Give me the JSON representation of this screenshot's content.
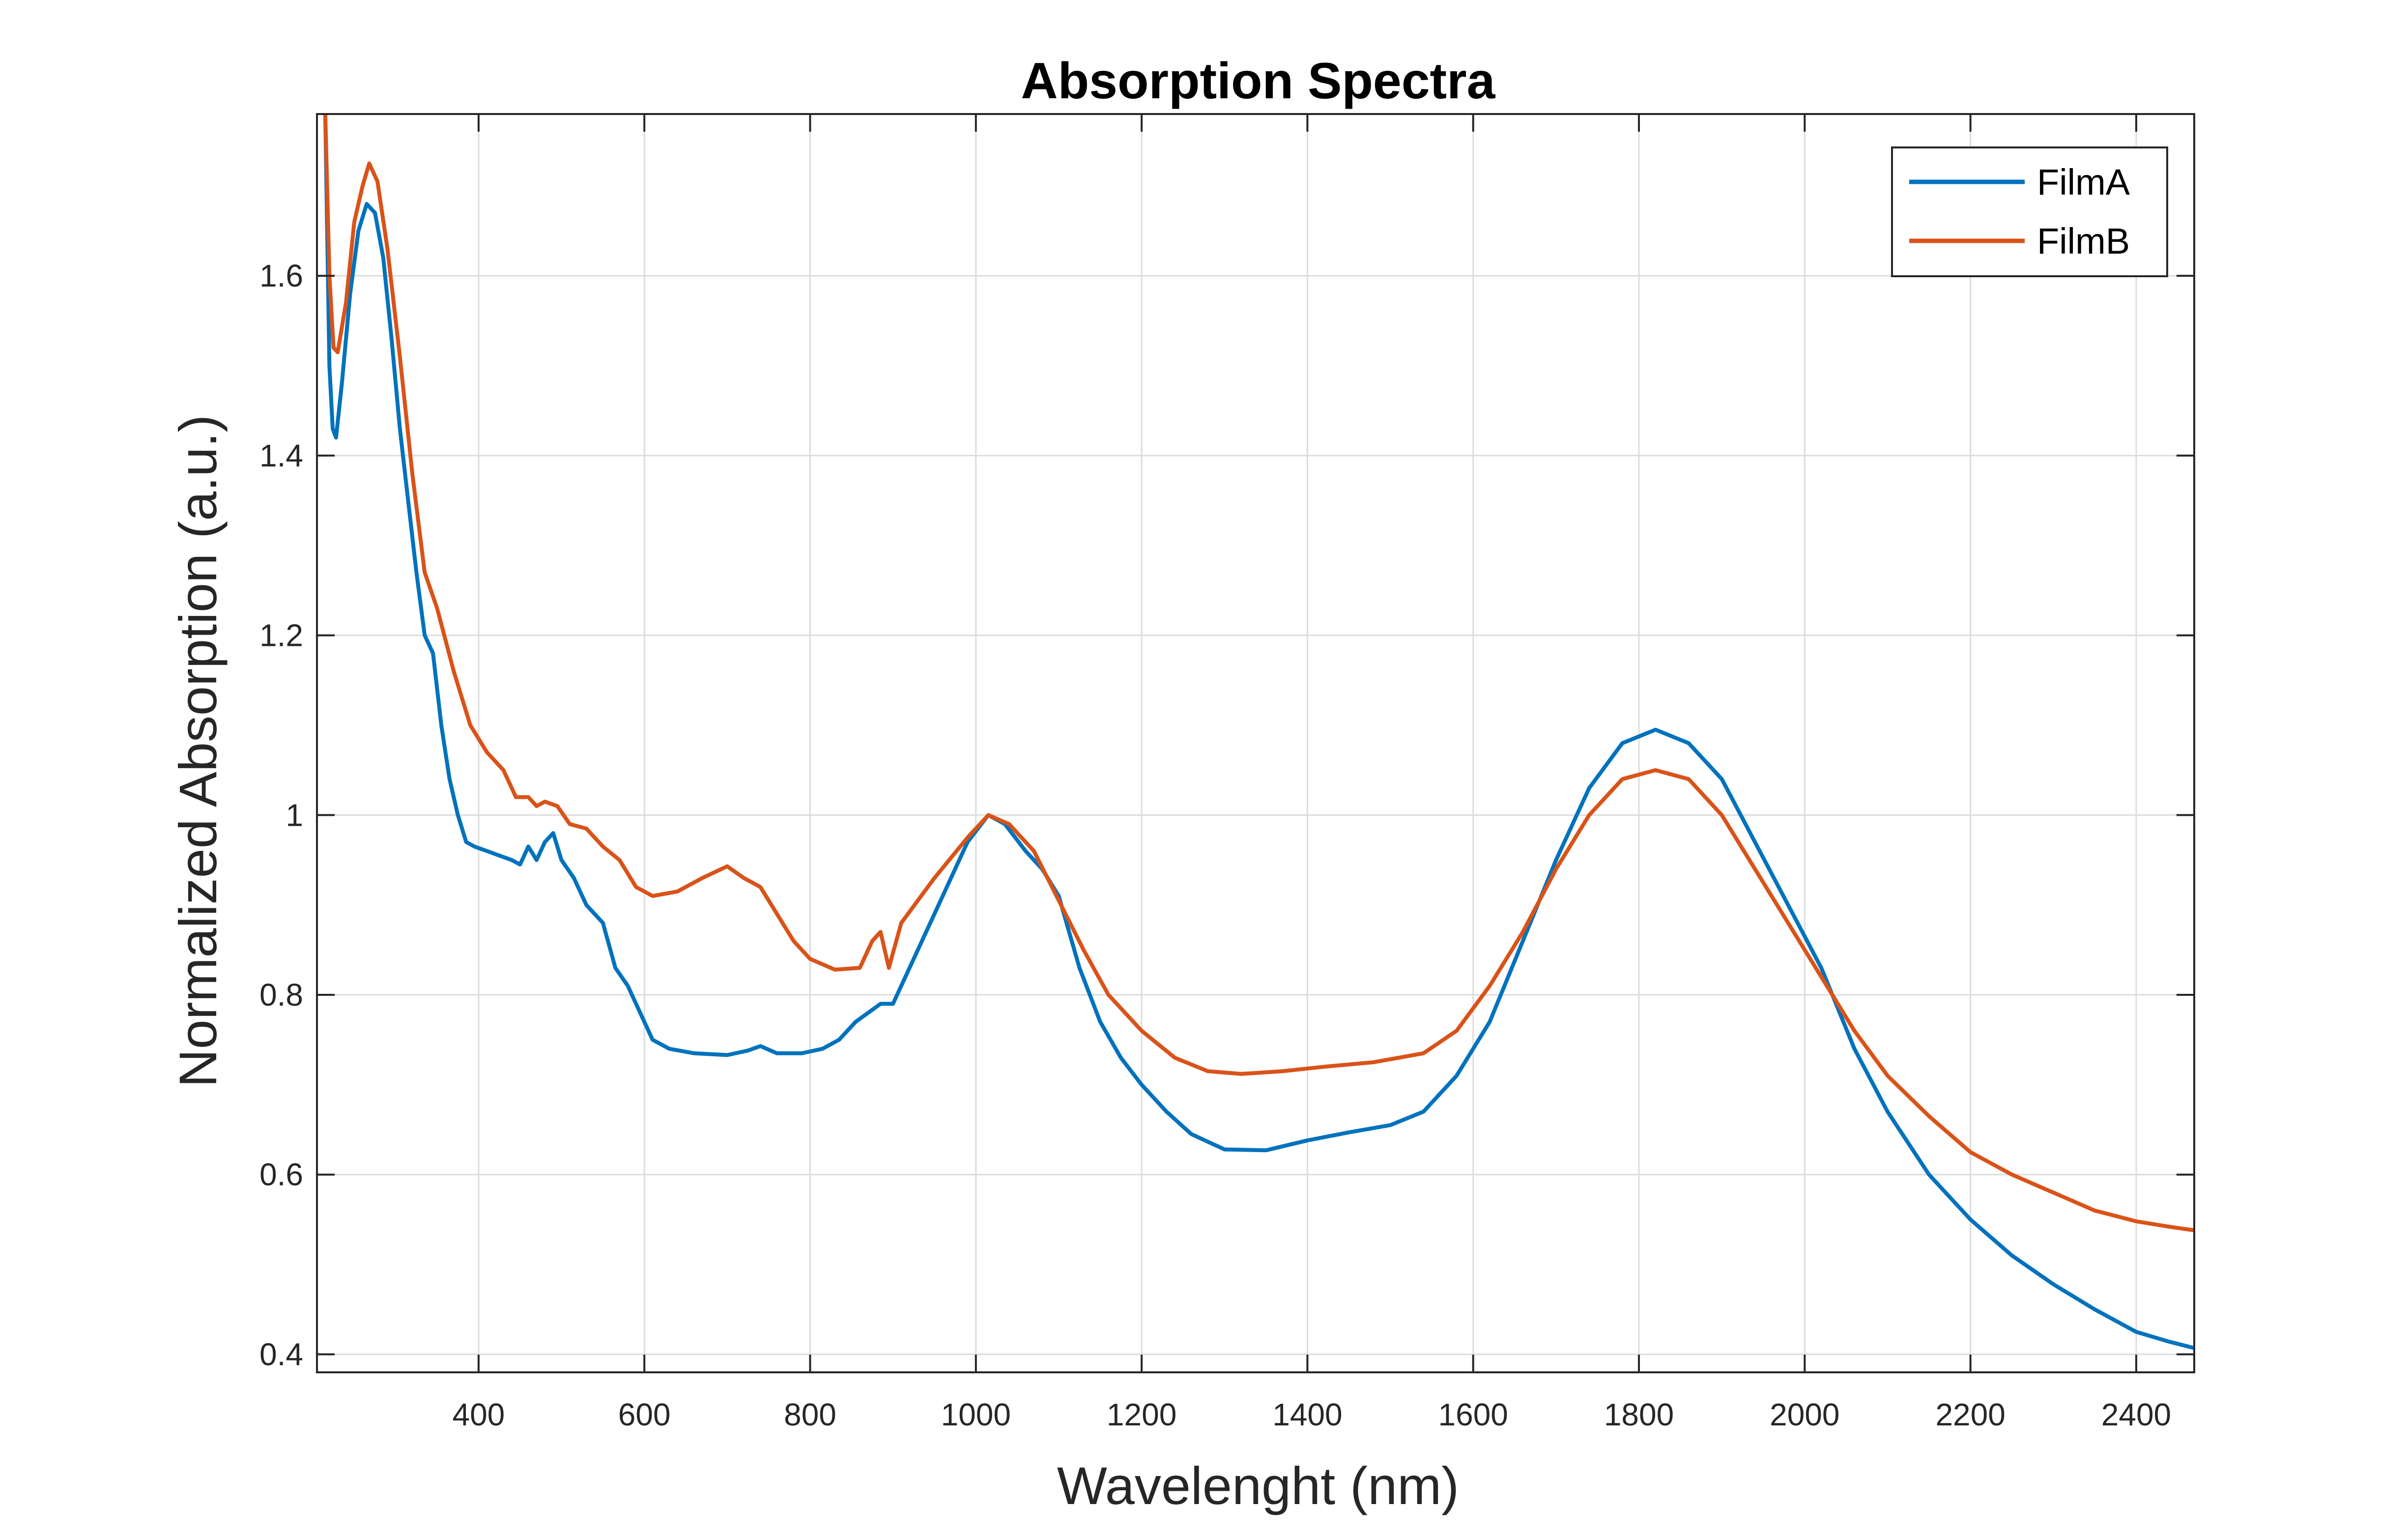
{
  "chart_data": {
    "type": "line",
    "title": "Absorption Spectra",
    "xlabel": "Wavelenght (nm)",
    "ylabel": "Normalized Absorption (a.u.)",
    "xlim": [
      205,
      2470
    ],
    "ylim": [
      0.38,
      1.78
    ],
    "xticks": [
      400,
      600,
      800,
      1000,
      1200,
      1400,
      1600,
      1800,
      2000,
      2200,
      2400
    ],
    "yticks": [
      0.4,
      0.6,
      0.8,
      1.0,
      1.2,
      1.4,
      1.6
    ],
    "ytick_labels": [
      "0.4",
      "0.6",
      "0.8",
      "1",
      "1.2",
      "1.4",
      "1.6"
    ],
    "grid": true,
    "legend_position": "top-right",
    "series": [
      {
        "name": "FilmA",
        "color": "#0072BD",
        "points": [
          [
            215,
            1.78
          ],
          [
            220,
            1.5
          ],
          [
            224,
            1.43
          ],
          [
            228,
            1.42
          ],
          [
            235,
            1.48
          ],
          [
            245,
            1.58
          ],
          [
            255,
            1.65
          ],
          [
            265,
            1.68
          ],
          [
            275,
            1.67
          ],
          [
            285,
            1.62
          ],
          [
            295,
            1.53
          ],
          [
            305,
            1.43
          ],
          [
            315,
            1.35
          ],
          [
            325,
            1.27
          ],
          [
            335,
            1.2
          ],
          [
            345,
            1.18
          ],
          [
            355,
            1.1
          ],
          [
            365,
            1.04
          ],
          [
            375,
            1.0
          ],
          [
            385,
            0.97
          ],
          [
            395,
            0.965
          ],
          [
            410,
            0.96
          ],
          [
            425,
            0.955
          ],
          [
            440,
            0.95
          ],
          [
            450,
            0.945
          ],
          [
            460,
            0.965
          ],
          [
            470,
            0.95
          ],
          [
            480,
            0.97
          ],
          [
            490,
            0.98
          ],
          [
            500,
            0.95
          ],
          [
            515,
            0.93
          ],
          [
            530,
            0.9
          ],
          [
            550,
            0.88
          ],
          [
            565,
            0.83
          ],
          [
            580,
            0.81
          ],
          [
            595,
            0.78
          ],
          [
            610,
            0.75
          ],
          [
            630,
            0.74
          ],
          [
            660,
            0.735
          ],
          [
            700,
            0.733
          ],
          [
            725,
            0.738
          ],
          [
            740,
            0.743
          ],
          [
            760,
            0.735
          ],
          [
            790,
            0.735
          ],
          [
            815,
            0.74
          ],
          [
            835,
            0.75
          ],
          [
            855,
            0.77
          ],
          [
            870,
            0.78
          ],
          [
            885,
            0.79
          ],
          [
            900,
            0.79
          ],
          [
            930,
            0.85
          ],
          [
            960,
            0.91
          ],
          [
            990,
            0.97
          ],
          [
            1015,
            1.0
          ],
          [
            1035,
            0.99
          ],
          [
            1060,
            0.96
          ],
          [
            1080,
            0.94
          ],
          [
            1100,
            0.91
          ],
          [
            1125,
            0.83
          ],
          [
            1150,
            0.77
          ],
          [
            1175,
            0.73
          ],
          [
            1200,
            0.7
          ],
          [
            1230,
            0.67
          ],
          [
            1260,
            0.645
          ],
          [
            1300,
            0.628
          ],
          [
            1350,
            0.627
          ],
          [
            1400,
            0.638
          ],
          [
            1450,
            0.647
          ],
          [
            1500,
            0.655
          ],
          [
            1540,
            0.67
          ],
          [
            1580,
            0.71
          ],
          [
            1620,
            0.77
          ],
          [
            1660,
            0.86
          ],
          [
            1700,
            0.95
          ],
          [
            1740,
            1.03
          ],
          [
            1780,
            1.08
          ],
          [
            1820,
            1.095
          ],
          [
            1860,
            1.08
          ],
          [
            1900,
            1.04
          ],
          [
            1940,
            0.97
          ],
          [
            1980,
            0.9
          ],
          [
            2020,
            0.83
          ],
          [
            2060,
            0.74
          ],
          [
            2100,
            0.67
          ],
          [
            2150,
            0.6
          ],
          [
            2200,
            0.55
          ],
          [
            2250,
            0.51
          ],
          [
            2300,
            0.478
          ],
          [
            2350,
            0.45
          ],
          [
            2400,
            0.425
          ],
          [
            2440,
            0.414
          ],
          [
            2470,
            0.407
          ]
        ]
      },
      {
        "name": "FilmB",
        "color": "#D95319",
        "points": [
          [
            215,
            1.78
          ],
          [
            220,
            1.6
          ],
          [
            225,
            1.52
          ],
          [
            230,
            1.515
          ],
          [
            240,
            1.57
          ],
          [
            250,
            1.66
          ],
          [
            260,
            1.7
          ],
          [
            268,
            1.725
          ],
          [
            278,
            1.705
          ],
          [
            290,
            1.63
          ],
          [
            305,
            1.51
          ],
          [
            320,
            1.38
          ],
          [
            335,
            1.27
          ],
          [
            350,
            1.23
          ],
          [
            370,
            1.16
          ],
          [
            390,
            1.1
          ],
          [
            410,
            1.07
          ],
          [
            430,
            1.05
          ],
          [
            445,
            1.02
          ],
          [
            460,
            1.02
          ],
          [
            470,
            1.01
          ],
          [
            480,
            1.015
          ],
          [
            495,
            1.01
          ],
          [
            510,
            0.99
          ],
          [
            530,
            0.985
          ],
          [
            550,
            0.965
          ],
          [
            570,
            0.95
          ],
          [
            590,
            0.92
          ],
          [
            610,
            0.91
          ],
          [
            640,
            0.915
          ],
          [
            670,
            0.93
          ],
          [
            700,
            0.943
          ],
          [
            720,
            0.93
          ],
          [
            740,
            0.92
          ],
          [
            760,
            0.89
          ],
          [
            780,
            0.86
          ],
          [
            800,
            0.84
          ],
          [
            830,
            0.828
          ],
          [
            860,
            0.83
          ],
          [
            875,
            0.86
          ],
          [
            885,
            0.87
          ],
          [
            895,
            0.83
          ],
          [
            910,
            0.88
          ],
          [
            950,
            0.93
          ],
          [
            990,
            0.975
          ],
          [
            1015,
            1.0
          ],
          [
            1040,
            0.99
          ],
          [
            1070,
            0.96
          ],
          [
            1100,
            0.905
          ],
          [
            1130,
            0.85
          ],
          [
            1160,
            0.8
          ],
          [
            1200,
            0.76
          ],
          [
            1240,
            0.73
          ],
          [
            1280,
            0.715
          ],
          [
            1320,
            0.712
          ],
          [
            1370,
            0.715
          ],
          [
            1420,
            0.72
          ],
          [
            1480,
            0.725
          ],
          [
            1540,
            0.735
          ],
          [
            1580,
            0.76
          ],
          [
            1620,
            0.81
          ],
          [
            1660,
            0.87
          ],
          [
            1700,
            0.94
          ],
          [
            1740,
            1.0
          ],
          [
            1780,
            1.04
          ],
          [
            1820,
            1.05
          ],
          [
            1860,
            1.04
          ],
          [
            1900,
            1.0
          ],
          [
            1940,
            0.94
          ],
          [
            1980,
            0.88
          ],
          [
            2020,
            0.82
          ],
          [
            2060,
            0.76
          ],
          [
            2100,
            0.71
          ],
          [
            2150,
            0.665
          ],
          [
            2200,
            0.625
          ],
          [
            2250,
            0.6
          ],
          [
            2300,
            0.58
          ],
          [
            2350,
            0.56
          ],
          [
            2400,
            0.548
          ],
          [
            2440,
            0.542
          ],
          [
            2470,
            0.538
          ]
        ]
      }
    ]
  }
}
